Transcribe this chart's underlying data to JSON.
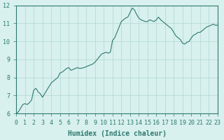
{
  "xlabel": "Humidex (Indice chaleur)",
  "ylabel": "",
  "bg_color": "#d8f0ee",
  "line_color": "#2d7a6e",
  "grid_color": "#b0d8d4",
  "xlim": [
    0,
    23
  ],
  "ylim": [
    6,
    12
  ],
  "xticks": [
    0,
    1,
    2,
    3,
    4,
    5,
    6,
    7,
    8,
    9,
    10,
    11,
    12,
    13,
    14,
    15,
    16,
    17,
    18,
    19,
    20,
    21,
    22,
    23
  ],
  "yticks": [
    6,
    7,
    8,
    9,
    10,
    11,
    12
  ],
  "x": [
    0,
    0.25,
    0.5,
    0.75,
    1.0,
    1.25,
    1.5,
    1.75,
    2.0,
    2.25,
    2.5,
    2.75,
    3.0,
    3.25,
    3.5,
    3.75,
    4.0,
    4.25,
    4.5,
    4.75,
    5.0,
    5.25,
    5.5,
    5.75,
    6.0,
    6.25,
    6.5,
    6.75,
    7.0,
    7.25,
    7.5,
    7.75,
    8.0,
    8.25,
    8.5,
    8.75,
    9.0,
    9.25,
    9.5,
    9.75,
    10.0,
    10.25,
    10.5,
    10.75,
    11.0,
    11.25,
    11.5,
    11.75,
    12.0,
    12.25,
    12.5,
    12.75,
    13.0,
    13.25,
    13.5,
    13.75,
    14.0,
    14.25,
    14.5,
    14.75,
    15.0,
    15.25,
    15.5,
    15.75,
    16.0,
    16.25,
    16.5,
    16.75,
    17.0,
    17.25,
    17.5,
    17.75,
    18.0,
    18.25,
    18.5,
    18.75,
    19.0,
    19.25,
    19.5,
    19.75,
    20.0,
    20.25,
    20.5,
    20.75,
    21.0,
    21.25,
    21.5,
    21.75,
    22.0,
    22.25,
    22.5,
    22.75,
    23.0
  ],
  "y": [
    6.0,
    6.1,
    6.3,
    6.5,
    6.55,
    6.5,
    6.6,
    6.75,
    7.3,
    7.4,
    7.2,
    7.1,
    6.9,
    7.1,
    7.3,
    7.5,
    7.7,
    7.8,
    7.9,
    8.0,
    8.25,
    8.3,
    8.4,
    8.5,
    8.55,
    8.4,
    8.45,
    8.5,
    8.55,
    8.5,
    8.52,
    8.55,
    8.6,
    8.65,
    8.7,
    8.75,
    8.85,
    9.0,
    9.15,
    9.3,
    9.35,
    9.4,
    9.35,
    9.4,
    10.05,
    10.2,
    10.5,
    10.8,
    11.1,
    11.2,
    11.3,
    11.35,
    11.6,
    11.85,
    11.75,
    11.5,
    11.3,
    11.2,
    11.15,
    11.1,
    11.1,
    11.2,
    11.15,
    11.1,
    11.2,
    11.35,
    11.2,
    11.1,
    11.0,
    10.9,
    10.8,
    10.7,
    10.5,
    10.3,
    10.2,
    10.1,
    9.9,
    9.85,
    9.95,
    10.0,
    10.2,
    10.35,
    10.4,
    10.5,
    10.5,
    10.6,
    10.7,
    10.8,
    10.85,
    10.9,
    10.95,
    10.9,
    10.9
  ]
}
